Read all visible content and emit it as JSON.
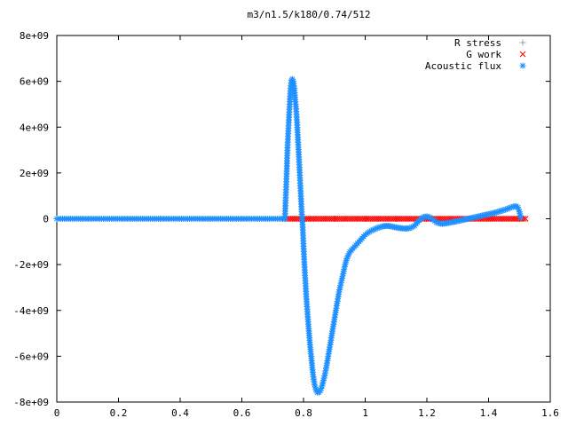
{
  "chart_data": {
    "type": "scatter",
    "title": "m3/n1.5/k180/0.74/512",
    "xlabel": "",
    "ylabel": "",
    "xlim": [
      0,
      1.6
    ],
    "ylim": [
      -8000000000,
      8000000000
    ],
    "x_ticks": [
      {
        "value": 0,
        "label": "0"
      },
      {
        "value": 0.2,
        "label": "0.2"
      },
      {
        "value": 0.4,
        "label": "0.4"
      },
      {
        "value": 0.6,
        "label": "0.6"
      },
      {
        "value": 0.8,
        "label": "0.8"
      },
      {
        "value": 1.0,
        "label": "1"
      },
      {
        "value": 1.2,
        "label": "1.2"
      },
      {
        "value": 1.4,
        "label": "1.4"
      },
      {
        "value": 1.6,
        "label": "1.6"
      }
    ],
    "y_ticks": [
      {
        "value": 8000000000,
        "label": "8e+09"
      },
      {
        "value": 6000000000,
        "label": "6e+09"
      },
      {
        "value": 4000000000,
        "label": "4e+09"
      },
      {
        "value": 2000000000,
        "label": "2e+09"
      },
      {
        "value": 0,
        "label": "0"
      },
      {
        "value": -2000000000,
        "label": "-2e+09"
      },
      {
        "value": -4000000000,
        "label": "-4e+09"
      },
      {
        "value": -6000000000,
        "label": "-6e+09"
      },
      {
        "value": -8000000000,
        "label": "-8e+09"
      }
    ],
    "grid": false,
    "legend_position": "top-right",
    "series": [
      {
        "name": "R stress",
        "marker": "plus",
        "color": "#a0a0a0",
        "points": [
          [
            0.74,
            0
          ],
          [
            0.9,
            0
          ],
          [
            1.1,
            0
          ],
          [
            1.3,
            0
          ],
          [
            1.5,
            0
          ]
        ]
      },
      {
        "name": "G work",
        "marker": "cross",
        "color": "#ff0000",
        "points": [
          [
            0.74,
            0
          ],
          [
            1.52,
            0
          ]
        ]
      },
      {
        "name": "Acoustic flux",
        "marker": "star",
        "color": "#1e90ff",
        "points": [
          [
            0.0,
            0
          ],
          [
            0.74,
            0
          ],
          [
            0.74,
            100000000
          ],
          [
            0.745,
            1850000000
          ],
          [
            0.748,
            3100000000
          ],
          [
            0.752,
            4200000000
          ],
          [
            0.755,
            5000000000
          ],
          [
            0.758,
            5700000000
          ],
          [
            0.761,
            6050000000
          ],
          [
            0.764,
            6100000000
          ],
          [
            0.767,
            6000000000
          ],
          [
            0.77,
            5700000000
          ],
          [
            0.773,
            5200000000
          ],
          [
            0.776,
            4800000000
          ],
          [
            0.779,
            4200000000
          ],
          [
            0.782,
            3450000000
          ],
          [
            0.785,
            2700000000
          ],
          [
            0.788,
            1900000000
          ],
          [
            0.791,
            1100000000
          ],
          [
            0.794,
            300000000
          ],
          [
            0.797,
            -250000000
          ],
          [
            0.8,
            -1200000000
          ],
          [
            0.803,
            -2000000000
          ],
          [
            0.806,
            -2700000000
          ],
          [
            0.809,
            -3400000000
          ],
          [
            0.812,
            -3950000000
          ],
          [
            0.815,
            -4500000000
          ],
          [
            0.818,
            -5000000000
          ],
          [
            0.821,
            -5500000000
          ],
          [
            0.824,
            -5900000000
          ],
          [
            0.827,
            -6300000000
          ],
          [
            0.83,
            -6700000000
          ],
          [
            0.833,
            -7000000000
          ],
          [
            0.836,
            -7250000000
          ],
          [
            0.84,
            -7450000000
          ],
          [
            0.845,
            -7580000000
          ],
          [
            0.85,
            -7580000000
          ],
          [
            0.855,
            -7500000000
          ],
          [
            0.86,
            -7300000000
          ],
          [
            0.865,
            -7050000000
          ],
          [
            0.87,
            -6750000000
          ],
          [
            0.875,
            -6400000000
          ],
          [
            0.88,
            -6000000000
          ],
          [
            0.885,
            -5600000000
          ],
          [
            0.89,
            -5200000000
          ],
          [
            0.895,
            -4800000000
          ],
          [
            0.9,
            -4400000000
          ],
          [
            0.905,
            -4000000000
          ],
          [
            0.91,
            -3600000000
          ],
          [
            0.915,
            -3200000000
          ],
          [
            0.92,
            -2900000000
          ],
          [
            0.925,
            -2600000000
          ],
          [
            0.93,
            -2300000000
          ],
          [
            0.935,
            -2000000000
          ],
          [
            0.94,
            -1750000000
          ],
          [
            0.945,
            -1600000000
          ],
          [
            0.95,
            -1450000000
          ],
          [
            0.96,
            -1300000000
          ],
          [
            0.97,
            -1150000000
          ],
          [
            0.98,
            -1000000000
          ],
          [
            0.99,
            -850000000
          ],
          [
            1.0,
            -700000000
          ],
          [
            1.01,
            -600000000
          ],
          [
            1.02,
            -520000000
          ],
          [
            1.03,
            -460000000
          ],
          [
            1.04,
            -400000000
          ],
          [
            1.05,
            -360000000
          ],
          [
            1.06,
            -320000000
          ],
          [
            1.07,
            -310000000
          ],
          [
            1.08,
            -320000000
          ],
          [
            1.09,
            -350000000
          ],
          [
            1.1,
            -380000000
          ],
          [
            1.11,
            -400000000
          ],
          [
            1.12,
            -420000000
          ],
          [
            1.13,
            -430000000
          ],
          [
            1.14,
            -420000000
          ],
          [
            1.15,
            -380000000
          ],
          [
            1.16,
            -300000000
          ],
          [
            1.17,
            -150000000
          ],
          [
            1.18,
            0
          ],
          [
            1.19,
            80000000
          ],
          [
            1.2,
            100000000
          ],
          [
            1.21,
            60000000
          ],
          [
            1.22,
            -50000000
          ],
          [
            1.23,
            -150000000
          ],
          [
            1.24,
            -200000000
          ],
          [
            1.25,
            -220000000
          ],
          [
            1.26,
            -200000000
          ],
          [
            1.27,
            -180000000
          ],
          [
            1.28,
            -150000000
          ],
          [
            1.29,
            -130000000
          ],
          [
            1.3,
            -100000000
          ],
          [
            1.31,
            -70000000
          ],
          [
            1.32,
            -40000000
          ],
          [
            1.33,
            -10000000
          ],
          [
            1.34,
            20000000
          ],
          [
            1.35,
            50000000
          ],
          [
            1.36,
            80000000
          ],
          [
            1.37,
            110000000
          ],
          [
            1.38,
            140000000
          ],
          [
            1.39,
            170000000
          ],
          [
            1.4,
            200000000
          ],
          [
            1.41,
            230000000
          ],
          [
            1.42,
            260000000
          ],
          [
            1.43,
            300000000
          ],
          [
            1.44,
            340000000
          ],
          [
            1.45,
            380000000
          ],
          [
            1.46,
            430000000
          ],
          [
            1.47,
            480000000
          ],
          [
            1.48,
            530000000
          ],
          [
            1.49,
            550000000
          ],
          [
            1.495,
            500000000
          ],
          [
            1.5,
            300000000
          ],
          [
            1.505,
            50000000
          ]
        ]
      }
    ]
  }
}
